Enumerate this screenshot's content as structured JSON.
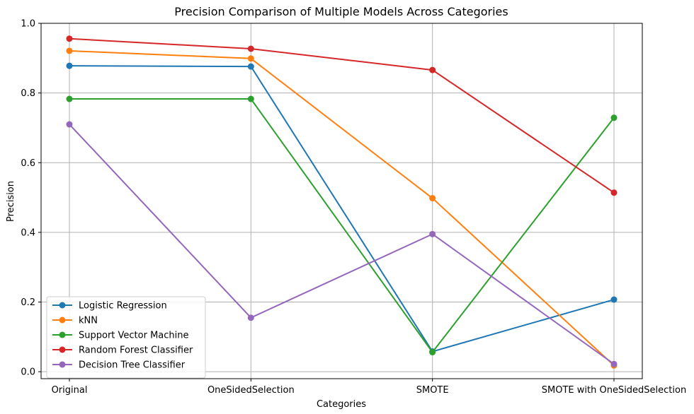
{
  "chart_data": {
    "type": "line",
    "title": "Precision Comparison of Multiple Models Across Categories",
    "xlabel": "Categories",
    "ylabel": "Precision",
    "categories": [
      "Original",
      "OneSidedSelection",
      "SMOTE",
      "SMOTE with OneSidedSelection"
    ],
    "ylim": [
      -0.02,
      1.0
    ],
    "yticks": [
      "0.0",
      "0.2",
      "0.4",
      "0.6",
      "0.8",
      "1.0"
    ],
    "grid": true,
    "legend_position": "lower-left",
    "series": [
      {
        "name": "Logistic Regression",
        "color": "#1f77b4",
        "values": [
          0.878,
          0.876,
          0.058,
          0.207
        ]
      },
      {
        "name": "kNN",
        "color": "#ff7f0e",
        "values": [
          0.921,
          0.899,
          0.498,
          0.018
        ]
      },
      {
        "name": "Support Vector Machine",
        "color": "#2ca02c",
        "values": [
          0.783,
          0.783,
          0.056,
          0.729
        ]
      },
      {
        "name": "Random Forest Classifier",
        "color": "#d62728",
        "values": [
          0.956,
          0.927,
          0.866,
          0.514
        ]
      },
      {
        "name": "Decision Tree Classifier",
        "color": "#9467bd",
        "values": [
          0.71,
          0.155,
          0.395,
          0.022
        ]
      }
    ]
  }
}
